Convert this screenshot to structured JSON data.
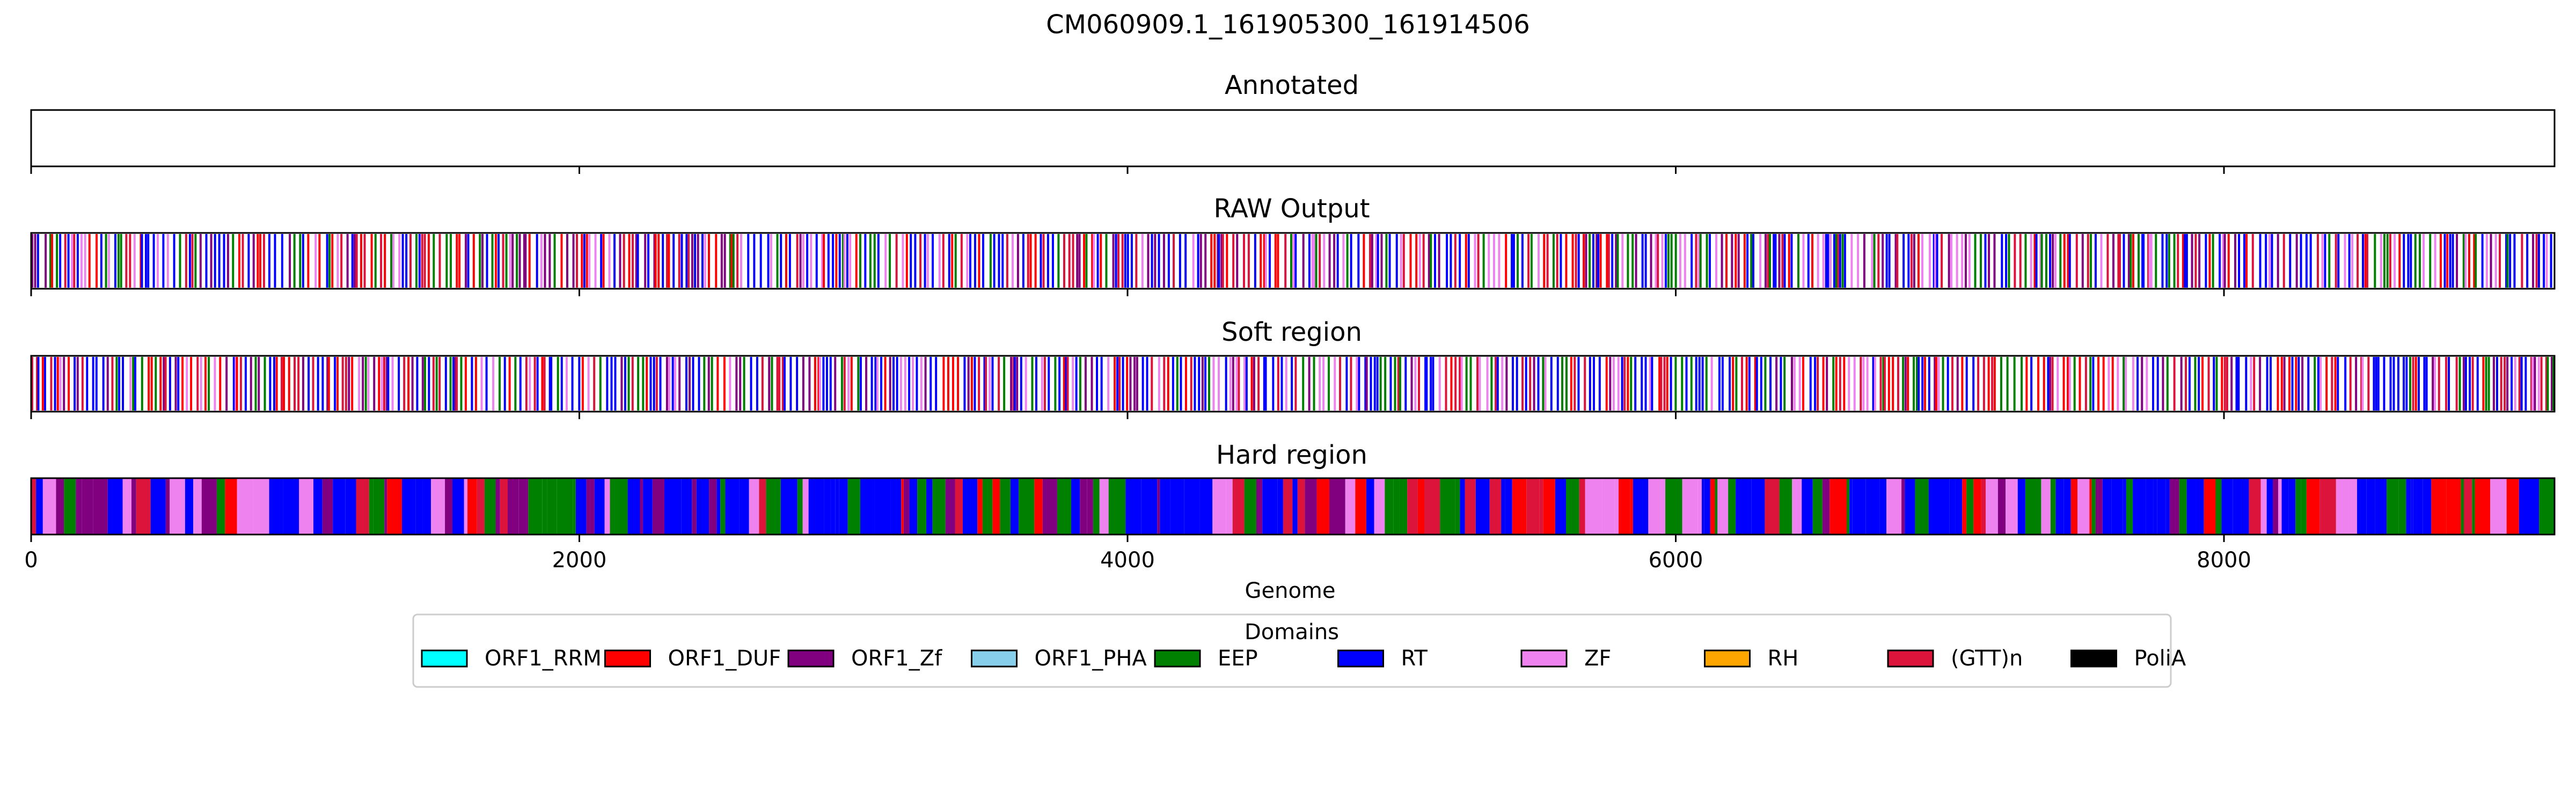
{
  "chart_data": {
    "type": "bar",
    "title": "CM060909.1_161905300_161914506",
    "xlabel": "Genome",
    "xlim": [
      0,
      9206
    ],
    "xticks": [
      0,
      2000,
      4000,
      6000,
      8000
    ],
    "panels": [
      {
        "id": "annotated",
        "title": "Annotated",
        "style": "empty"
      },
      {
        "id": "raw",
        "title": "RAW Output",
        "style": "lines"
      },
      {
        "id": "soft",
        "title": "Soft region",
        "style": "lines"
      },
      {
        "id": "hard",
        "title": "Hard region",
        "style": "filled"
      }
    ],
    "legend": {
      "title": "Domains",
      "placement": "bottom-center",
      "items": [
        {
          "name": "ORF1_RRM",
          "color": "#00FFFF"
        },
        {
          "name": "ORF1_DUF",
          "color": "#FF0000"
        },
        {
          "name": "ORF1_Zf",
          "color": "#800080"
        },
        {
          "name": "ORF1_PHA",
          "color": "#87CEEB"
        },
        {
          "name": "EEP",
          "color": "#008000"
        },
        {
          "name": "RT",
          "color": "#0000FF"
        },
        {
          "name": "ZF",
          "color": "#EE82EE"
        },
        {
          "name": "RH",
          "color": "#FFA500"
        },
        {
          "name": "(GTT)n",
          "color": "#DC143C"
        },
        {
          "name": "PoliA",
          "color": "#000000"
        }
      ]
    },
    "grid": false
  }
}
